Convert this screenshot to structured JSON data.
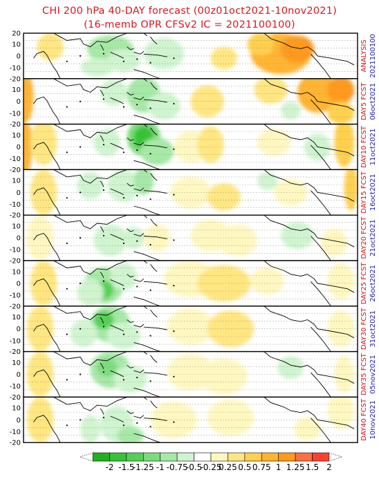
{
  "title": {
    "line1": "CHI 200 hPa 40-DAY forecast (00z01oct2021-10nov2021)",
    "line2": "(16-memb OPR CFSv2 IC = 2021100100)"
  },
  "lat_ticks": [
    "20",
    "10",
    "0",
    "-10",
    "-20"
  ],
  "panels": [
    {
      "label_top": "ANALYSIS",
      "label_bottom": "2021100100",
      "blobs": [
        [
          0.26,
          0.35,
          0.07,
          0.3,
          2
        ],
        [
          0.3,
          0.6,
          0.05,
          0.25,
          1
        ],
        [
          0.42,
          0.45,
          0.06,
          0.35,
          1
        ],
        [
          0.22,
          0.75,
          0.05,
          0.2,
          1
        ],
        [
          0.77,
          0.45,
          0.09,
          0.45,
          -4
        ],
        [
          0.82,
          0.35,
          0.05,
          0.3,
          -5
        ],
        [
          0.71,
          0.25,
          0.04,
          0.25,
          -3
        ],
        [
          0.6,
          0.55,
          0.04,
          0.25,
          -2
        ],
        [
          0.08,
          0.3,
          0.04,
          0.3,
          -2
        ]
      ]
    },
    {
      "label_top": "DAY5 FCST",
      "label_bottom": "06oct2021",
      "blobs": [
        [
          0.36,
          0.35,
          0.05,
          0.4,
          2
        ],
        [
          0.27,
          0.3,
          0.04,
          0.3,
          1
        ],
        [
          0.42,
          0.6,
          0.05,
          0.3,
          1
        ],
        [
          0.0,
          0.4,
          0.03,
          0.6,
          -4
        ],
        [
          0.55,
          0.5,
          0.05,
          0.35,
          -2
        ],
        [
          0.74,
          0.25,
          0.05,
          0.3,
          -2
        ],
        [
          0.88,
          0.3,
          0.06,
          0.45,
          -4
        ],
        [
          0.95,
          0.25,
          0.04,
          0.3,
          -5
        ],
        [
          0.95,
          0.75,
          0.04,
          0.25,
          -3
        ],
        [
          0.8,
          0.7,
          0.03,
          0.2,
          1
        ]
      ]
    },
    {
      "label_top": "DAY10 FCST",
      "label_bottom": "11oct2021",
      "blobs": [
        [
          0.36,
          0.3,
          0.05,
          0.4,
          3
        ],
        [
          0.36,
          0.3,
          0.03,
          0.25,
          5
        ],
        [
          0.4,
          0.6,
          0.05,
          0.3,
          2
        ],
        [
          0.25,
          0.4,
          0.04,
          0.3,
          1
        ],
        [
          0.0,
          0.5,
          0.025,
          0.7,
          -4
        ],
        [
          0.06,
          0.4,
          0.04,
          0.5,
          -2
        ],
        [
          0.5,
          0.5,
          0.05,
          0.35,
          -1
        ],
        [
          0.56,
          0.45,
          0.04,
          0.4,
          -2
        ],
        [
          0.75,
          0.4,
          0.05,
          0.3,
          -1
        ],
        [
          0.96,
          0.4,
          0.03,
          0.55,
          -3
        ],
        [
          0.88,
          0.5,
          0.04,
          0.3,
          1
        ]
      ]
    },
    {
      "label_top": "DAY15 FCST",
      "label_bottom": "16oct2021",
      "blobs": [
        [
          0.3,
          0.35,
          0.05,
          0.35,
          1
        ],
        [
          0.36,
          0.25,
          0.03,
          0.3,
          2
        ],
        [
          0.2,
          0.35,
          0.04,
          0.3,
          1
        ],
        [
          0.06,
          0.5,
          0.04,
          0.5,
          -2
        ],
        [
          0.5,
          0.5,
          0.06,
          0.35,
          -1
        ],
        [
          0.6,
          0.6,
          0.05,
          0.3,
          -2
        ],
        [
          0.8,
          0.5,
          0.05,
          0.3,
          -1
        ],
        [
          0.98,
          0.4,
          0.02,
          0.5,
          -3
        ],
        [
          0.73,
          0.25,
          0.03,
          0.2,
          1
        ]
      ]
    },
    {
      "label_top": "DAY20 FCST",
      "label_bottom": "21oct2021",
      "blobs": [
        [
          0.26,
          0.55,
          0.05,
          0.35,
          1
        ],
        [
          0.33,
          0.5,
          0.03,
          0.25,
          1
        ],
        [
          0.4,
          0.5,
          0.04,
          0.3,
          -1
        ],
        [
          0.56,
          0.45,
          0.06,
          0.35,
          -1
        ],
        [
          0.64,
          0.55,
          0.06,
          0.35,
          -1
        ],
        [
          0.05,
          0.5,
          0.04,
          0.5,
          -1
        ],
        [
          0.82,
          0.45,
          0.05,
          0.3,
          1
        ],
        [
          0.93,
          0.6,
          0.04,
          0.3,
          -1
        ]
      ]
    },
    {
      "label_top": "DAY25 FCST",
      "label_bottom": "26oct2021",
      "blobs": [
        [
          0.24,
          0.55,
          0.06,
          0.4,
          2
        ],
        [
          0.24,
          0.65,
          0.03,
          0.2,
          4
        ],
        [
          0.3,
          0.35,
          0.04,
          0.3,
          1
        ],
        [
          0.2,
          0.7,
          0.04,
          0.3,
          1
        ],
        [
          0.5,
          0.4,
          0.08,
          0.4,
          -1
        ],
        [
          0.6,
          0.5,
          0.08,
          0.4,
          -2
        ],
        [
          0.73,
          0.45,
          0.05,
          0.3,
          -1
        ],
        [
          0.06,
          0.5,
          0.04,
          0.5,
          -2
        ],
        [
          0.95,
          0.45,
          0.04,
          0.4,
          -1
        ]
      ]
    },
    {
      "label_top": "DAY30 FCST",
      "label_bottom": "31oct2021",
      "blobs": [
        [
          0.26,
          0.4,
          0.06,
          0.4,
          2
        ],
        [
          0.24,
          0.3,
          0.03,
          0.2,
          4
        ],
        [
          0.3,
          0.65,
          0.05,
          0.3,
          1
        ],
        [
          0.18,
          0.6,
          0.04,
          0.3,
          1
        ],
        [
          0.5,
          0.45,
          0.07,
          0.4,
          -1
        ],
        [
          0.62,
          0.5,
          0.07,
          0.4,
          -2
        ],
        [
          0.05,
          0.5,
          0.04,
          0.5,
          -2
        ],
        [
          0.95,
          0.5,
          0.04,
          0.4,
          -1
        ]
      ]
    },
    {
      "label_top": "DAY35 FCST",
      "label_bottom": "05nov2021",
      "blobs": [
        [
          0.26,
          0.4,
          0.06,
          0.4,
          2
        ],
        [
          0.25,
          0.35,
          0.03,
          0.2,
          3
        ],
        [
          0.32,
          0.6,
          0.05,
          0.3,
          1
        ],
        [
          0.5,
          0.45,
          0.07,
          0.4,
          -1
        ],
        [
          0.6,
          0.55,
          0.07,
          0.4,
          -1
        ],
        [
          0.05,
          0.5,
          0.04,
          0.5,
          -2
        ],
        [
          0.96,
          0.5,
          0.03,
          0.4,
          -1
        ],
        [
          0.8,
          0.35,
          0.04,
          0.25,
          1
        ]
      ]
    },
    {
      "label_top": "DAY40 FCST",
      "label_bottom": "10nov2021",
      "blobs": [
        [
          0.28,
          0.6,
          0.05,
          0.4,
          1
        ],
        [
          0.32,
          0.85,
          0.04,
          0.2,
          2
        ],
        [
          0.2,
          0.7,
          0.03,
          0.3,
          1
        ],
        [
          0.45,
          0.5,
          0.07,
          0.4,
          -1
        ],
        [
          0.62,
          0.45,
          0.07,
          0.4,
          -1
        ],
        [
          0.05,
          0.5,
          0.04,
          0.5,
          -2
        ],
        [
          0.95,
          0.3,
          0.04,
          0.4,
          -1
        ],
        [
          0.85,
          0.7,
          0.04,
          0.25,
          -1
        ]
      ]
    }
  ],
  "colorbar": {
    "labels": [
      "-2",
      "-1.5",
      "-1.25",
      "-1",
      "-0.75",
      "-0.5",
      "-0.25",
      "0.25",
      "0.5",
      "0.75",
      "1",
      "1.25",
      "1.5",
      "2"
    ],
    "colors": [
      "#1fb21f",
      "#35c335",
      "#55d055",
      "#7cdc7c",
      "#a6e8a6",
      "#cff4cf",
      "#ffffff",
      "#fff7c0",
      "#ffe680",
      "#ffd04d",
      "#ffb430",
      "#ff9a1a",
      "#ff7040",
      "#ff4030"
    ]
  },
  "level_colors": {
    "green": [
      "#cff4cf",
      "#a6e8a6",
      "#7cdc7c",
      "#55d055",
      "#35c335",
      "#1fb21f"
    ],
    "orange": [
      "#fff7c0",
      "#ffe680",
      "#ffd04d",
      "#ffb430",
      "#ff9a1a",
      "#ff7040"
    ]
  }
}
